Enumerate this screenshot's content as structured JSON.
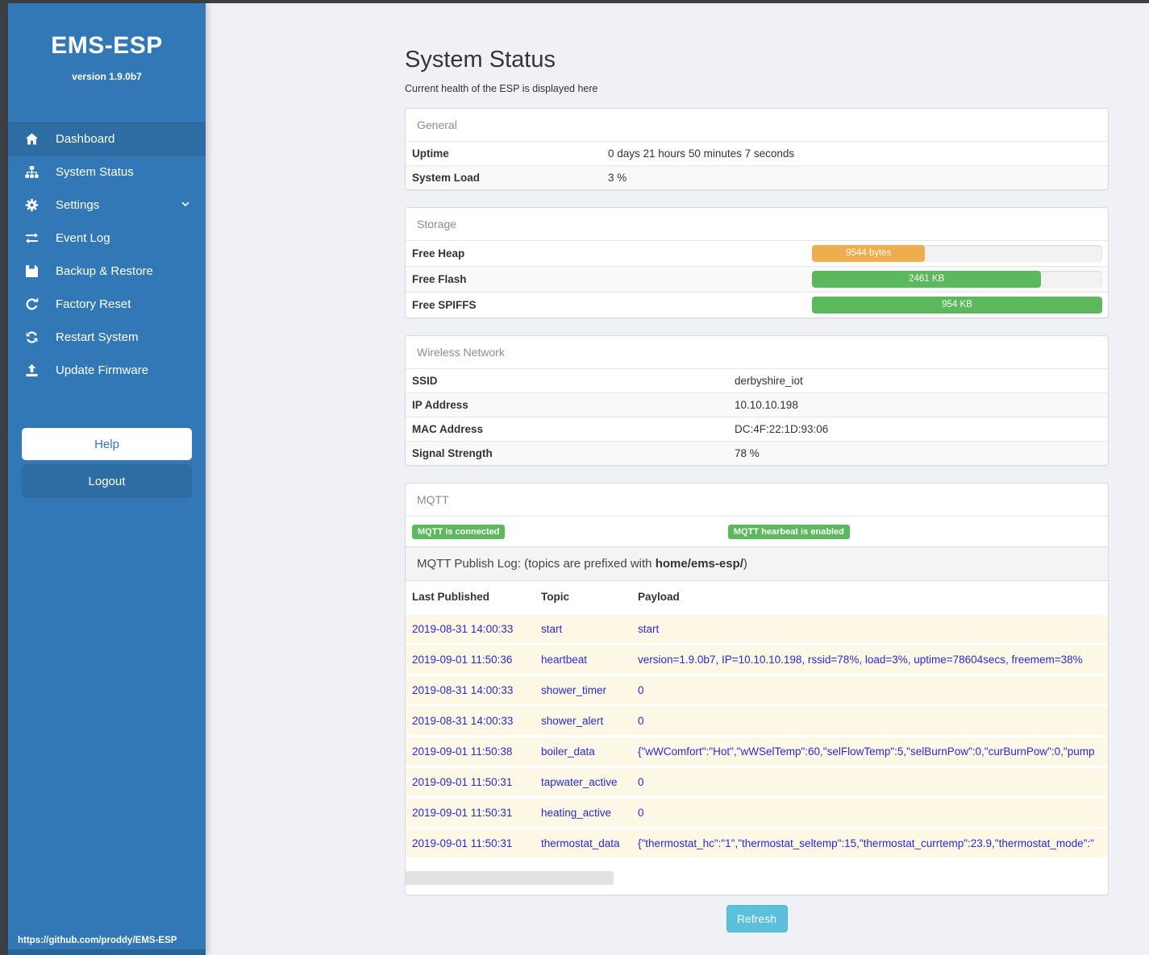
{
  "colors": {
    "sidebar_blue": "#3378b6",
    "active_item_blue": "#2e6da4",
    "bar_orange": "#f0ad4e",
    "bar_green": "#5cb85c",
    "badge_green": "#5cb85c",
    "refresh_blue": "#5bc0de",
    "log_link_blue": "#2b28d9"
  },
  "sidebar": {
    "brand": "EMS-ESP",
    "version": "version 1.9.0b7",
    "items": [
      {
        "label": "Dashboard",
        "icon": "home-icon",
        "active": true
      },
      {
        "label": "System Status",
        "icon": "sitemap-icon"
      },
      {
        "label": "Settings",
        "icon": "gear-icon",
        "chevron": true
      },
      {
        "label": "Event Log",
        "icon": "exchange-icon"
      },
      {
        "label": "Backup & Restore",
        "icon": "save-icon"
      },
      {
        "label": "Factory Reset",
        "icon": "rotate-right-icon"
      },
      {
        "label": "Restart System",
        "icon": "refresh-icon"
      },
      {
        "label": "Update Firmware",
        "icon": "upload-icon"
      }
    ],
    "help_label": "Help",
    "logout_label": "Logout",
    "footer_link": "https://github.com/proddy/EMS-ESP"
  },
  "page": {
    "title": "System Status",
    "subtitle": "Current health of the ESP is displayed here",
    "refresh_label": "Refresh"
  },
  "panels": {
    "general": {
      "title": "General",
      "rows": [
        {
          "label": "Uptime",
          "value": "0 days 21 hours 50 minutes 7 seconds"
        },
        {
          "label": "System Load",
          "value": "3 %"
        }
      ]
    },
    "storage": {
      "title": "Storage",
      "rows": [
        {
          "label": "Free Heap",
          "bar_label": "9544 bytes",
          "percent": "39%",
          "color": "#f0ad4e"
        },
        {
          "label": "Free Flash",
          "bar_label": "2461 KB",
          "percent": "79%",
          "color": "#5cb85c"
        },
        {
          "label": "Free SPIFFS",
          "bar_label": "954 KB",
          "percent": "100%",
          "color": "#5cb85c"
        }
      ]
    },
    "wireless": {
      "title": "Wireless Network",
      "rows": [
        {
          "label": "SSID",
          "value": "derbyshire_iot"
        },
        {
          "label": "IP Address",
          "value": "10.10.10.198"
        },
        {
          "label": "MAC Address",
          "value": "DC:4F:22:1D:93:06"
        },
        {
          "label": "Signal Strength",
          "value": "78 %"
        }
      ]
    },
    "mqtt": {
      "title": "MQTT",
      "badges": [
        "MQTT is connected",
        "MQTT hearbeat is enabled"
      ],
      "log_intro": {
        "prefix": "MQTT Publish Log: (topics are prefixed with ",
        "bold": "home/ems-esp/",
        "suffix": ")"
      },
      "columns": [
        "Last Published",
        "Topic",
        "Payload"
      ],
      "rows": [
        {
          "time": "2019-08-31 14:00:33",
          "topic": "start",
          "payload": "start"
        },
        {
          "time": "2019-09-01 11:50:36",
          "topic": "heartbeat",
          "payload": "version=1.9.0b7, IP=10.10.10.198, rssid=78%, load=3%, uptime=78604secs, freemem=38%"
        },
        {
          "time": "2019-08-31 14:00:33",
          "topic": "shower_timer",
          "payload": "0"
        },
        {
          "time": "2019-08-31 14:00:33",
          "topic": "shower_alert",
          "payload": "0"
        },
        {
          "time": "2019-09-01 11:50:38",
          "topic": "boiler_data",
          "payload": "{\"wWComfort\":\"Hot\",\"wWSelTemp\":60,\"selFlowTemp\":5,\"selBurnPow\":0,\"curBurnPow\":0,\"pump"
        },
        {
          "time": "2019-09-01 11:50:31",
          "topic": "tapwater_active",
          "payload": "0"
        },
        {
          "time": "2019-09-01 11:50:31",
          "topic": "heating_active",
          "payload": "0"
        },
        {
          "time": "2019-09-01 11:50:31",
          "topic": "thermostat_data",
          "payload": "{\"thermostat_hc\":\"1\",\"thermostat_seltemp\":15,\"thermostat_currtemp\":23.9,\"thermostat_mode\":\""
        }
      ]
    }
  }
}
